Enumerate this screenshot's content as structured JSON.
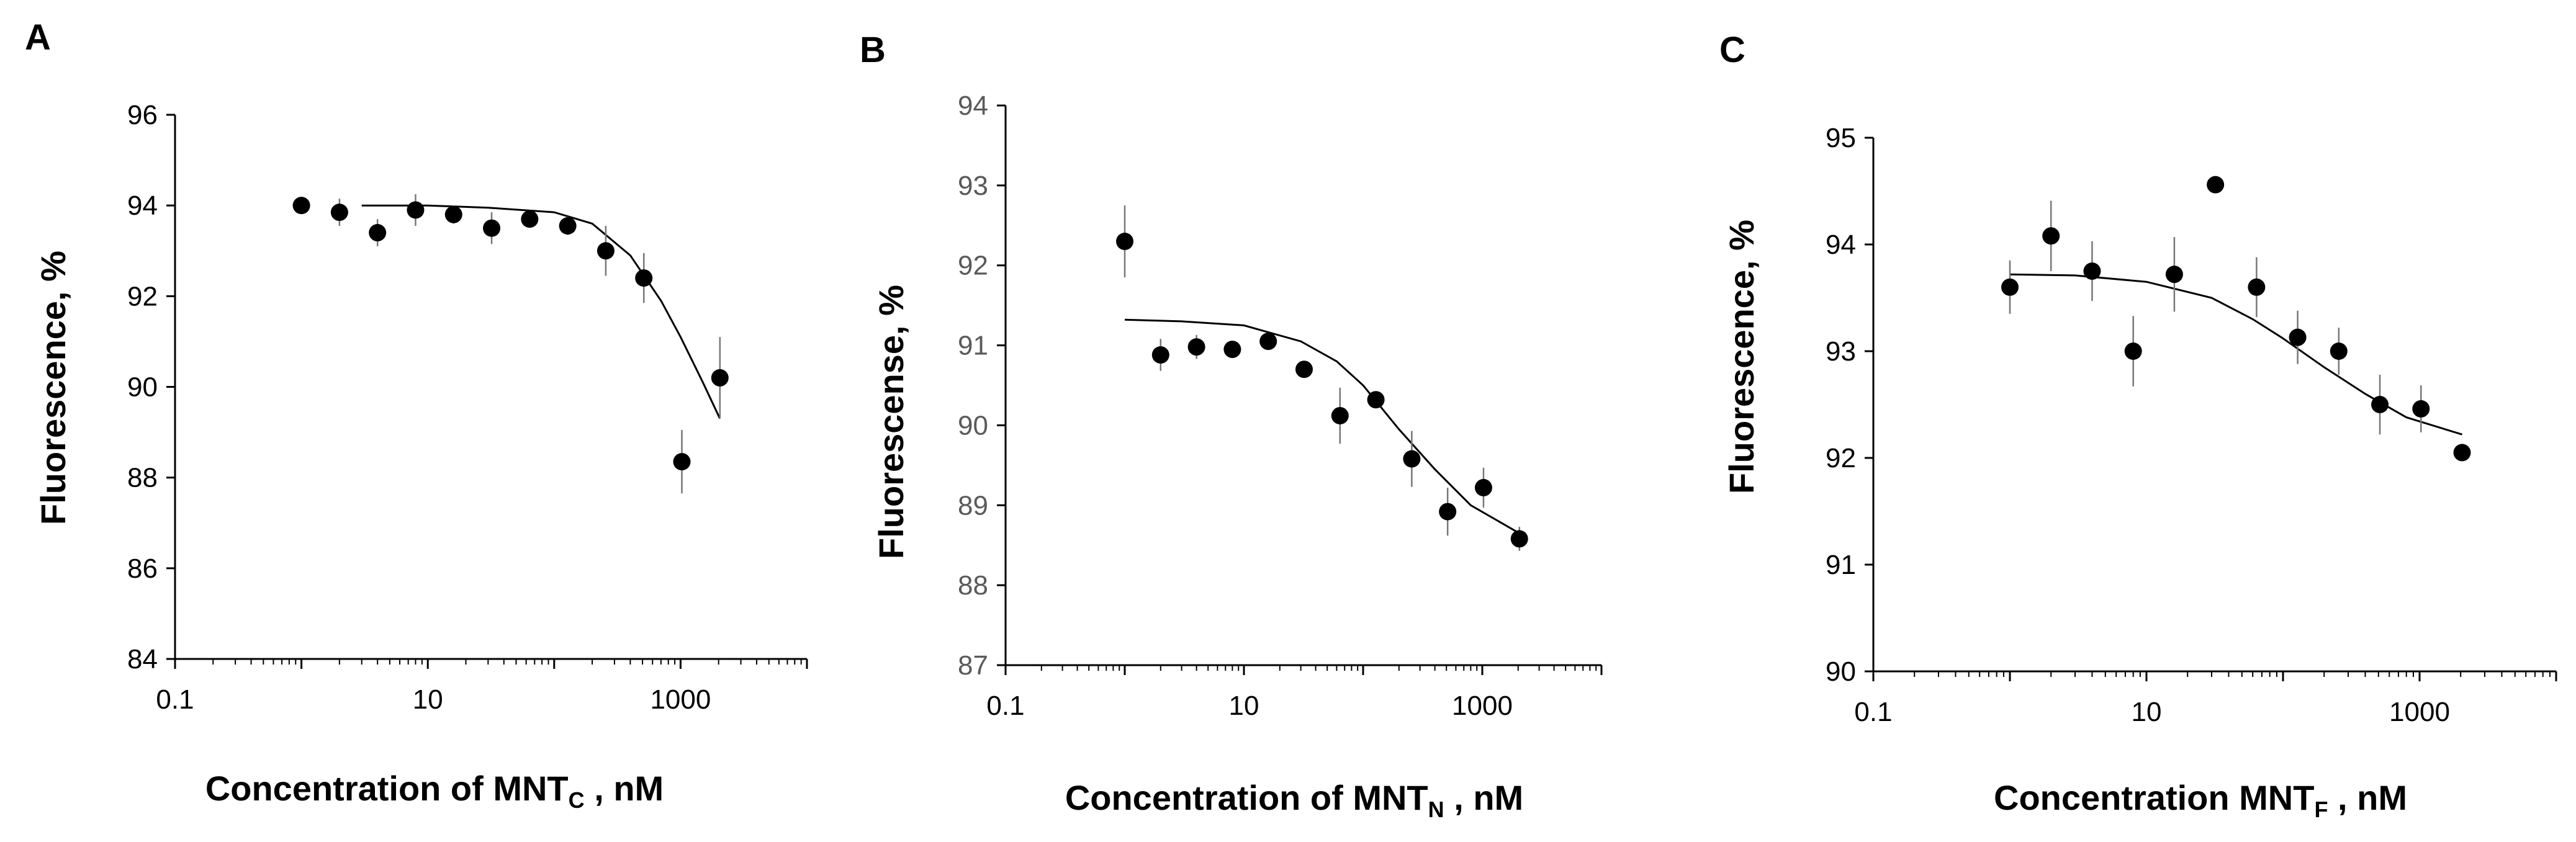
{
  "figure": {
    "panels": [
      {
        "letter": "A",
        "xlabel_pre": "Concentration of MNT",
        "xlabel_sub": "C",
        "xlabel_post": " , nM"
      },
      {
        "letter": "B",
        "xlabel_pre": "Concentration of MNT",
        "xlabel_sub": "N",
        "xlabel_post": " , nM"
      },
      {
        "letter": "C",
        "xlabel_pre": "Concentration MNT",
        "xlabel_sub": "F",
        "xlabel_post": " , nM"
      }
    ]
  },
  "chart_data": [
    {
      "type": "scatter",
      "panel": "A",
      "title": "",
      "xlabel": "Concentration of MNT_C , nM",
      "ylabel": "Fluorescence, %",
      "xscale": "log",
      "xlim": [
        0.1,
        10000
      ],
      "ylim": [
        84,
        96
      ],
      "xticks": [
        0.1,
        10,
        1000
      ],
      "xtick_labels": [
        "0.1",
        "10",
        "1000"
      ],
      "yticks": [
        84,
        86,
        88,
        90,
        92,
        94,
        96
      ],
      "ytick_labels": [
        "84",
        "86",
        "88",
        "90",
        "92",
        "94",
        "96"
      ],
      "ytick_style": "black",
      "x": [
        1,
        2,
        4,
        8,
        16,
        32,
        64,
        128,
        256,
        512,
        1024,
        2048
      ],
      "y": [
        94.0,
        93.85,
        93.4,
        93.9,
        93.8,
        93.5,
        93.7,
        93.55,
        93.0,
        92.4,
        88.35,
        90.2
      ],
      "yerr": [
        0,
        0.3,
        0.3,
        0.35,
        0.2,
        0.35,
        0.15,
        0.2,
        0.55,
        0.55,
        0.7,
        0.9
      ],
      "fit": {
        "x": [
          3,
          10,
          30,
          100,
          200,
          400,
          700,
          1000,
          1500,
          2048
        ],
        "y": [
          94.0,
          94.0,
          93.95,
          93.85,
          93.6,
          92.9,
          91.9,
          91.1,
          90.1,
          89.3
        ]
      }
    },
    {
      "type": "scatter",
      "panel": "B",
      "title": "",
      "xlabel": "Concentration of MNT_N , nM",
      "ylabel": "Fluorescense, %",
      "xscale": "log",
      "xlim": [
        0.1,
        10000
      ],
      "ylim": [
        87,
        94
      ],
      "xticks": [
        0.1,
        10,
        1000
      ],
      "xtick_labels": [
        "0.1",
        "10",
        "1000"
      ],
      "yticks": [
        87,
        88,
        89,
        90,
        91,
        92,
        93,
        94
      ],
      "ytick_labels": [
        "87",
        "88",
        "89",
        "90",
        "91",
        "92",
        "93",
        "94"
      ],
      "ytick_style": "gray",
      "x": [
        1,
        2,
        4,
        8,
        16,
        32,
        64,
        128,
        256,
        512,
        1024,
        2048
      ],
      "y": [
        92.3,
        90.88,
        90.98,
        90.95,
        91.05,
        90.7,
        90.12,
        90.32,
        89.58,
        88.92,
        89.22,
        88.58
      ],
      "yerr": [
        0.45,
        0.2,
        0.15,
        0,
        0.1,
        0,
        0.35,
        0,
        0.35,
        0.3,
        0.25,
        0.15
      ],
      "fit": {
        "x": [
          1,
          3,
          10,
          30,
          60,
          100,
          200,
          400,
          800,
          2048
        ],
        "y": [
          91.32,
          91.3,
          91.25,
          91.05,
          90.8,
          90.5,
          89.95,
          89.45,
          89.0,
          88.65
        ]
      }
    },
    {
      "type": "scatter",
      "panel": "C",
      "title": "",
      "xlabel": "Concentration MNT_F , nM",
      "ylabel": "Fluorescence,  %",
      "xscale": "log",
      "xlim": [
        0.1,
        10000
      ],
      "ylim": [
        90,
        95
      ],
      "xticks": [
        0.1,
        10,
        1000
      ],
      "xtick_labels": [
        "0.1",
        "10",
        "1000"
      ],
      "yticks": [
        90,
        91,
        92,
        93,
        94,
        95
      ],
      "ytick_labels": [
        "90",
        "91",
        "92",
        "93",
        "94",
        "95"
      ],
      "ytick_style": "black",
      "x": [
        1,
        2,
        4,
        8,
        16,
        32,
        64,
        128,
        256,
        512,
        1024,
        2048
      ],
      "y": [
        93.6,
        94.08,
        93.75,
        93.0,
        93.72,
        94.56,
        93.6,
        93.13,
        93.0,
        92.5,
        92.46,
        92.05
      ],
      "yerr": [
        0.25,
        0.33,
        0.28,
        0.33,
        0.35,
        0,
        0.28,
        0.25,
        0.22,
        0.28,
        0.22,
        0
      ],
      "fit": {
        "x": [
          1,
          3,
          10,
          30,
          60,
          100,
          200,
          400,
          800,
          2048
        ],
        "y": [
          93.72,
          93.71,
          93.65,
          93.5,
          93.3,
          93.12,
          92.85,
          92.6,
          92.38,
          92.22
        ]
      }
    }
  ]
}
